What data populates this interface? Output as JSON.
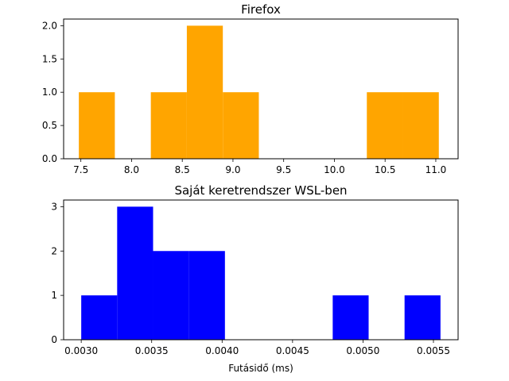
{
  "chart_data": [
    {
      "type": "bar",
      "title": "Firefox",
      "xlabel": "",
      "ylabel": "",
      "color": "#ffa500",
      "xlim": [
        7.33,
        11.22
      ],
      "ylim": [
        0,
        2.1
      ],
      "xticks": [
        "7.5",
        "8.0",
        "8.5",
        "9.0",
        "9.5",
        "10.0",
        "10.5",
        "11.0"
      ],
      "yticks": [
        "0.0",
        "0.5",
        "1.0",
        "1.5",
        "2.0"
      ],
      "bins": [
        {
          "x0": 7.48,
          "x1": 7.835,
          "count": 1
        },
        {
          "x0": 7.835,
          "x1": 8.19,
          "count": 0
        },
        {
          "x0": 8.19,
          "x1": 8.545,
          "count": 1
        },
        {
          "x0": 8.545,
          "x1": 8.9,
          "count": 2
        },
        {
          "x0": 8.9,
          "x1": 9.255,
          "count": 1
        },
        {
          "x0": 9.255,
          "x1": 9.61,
          "count": 0
        },
        {
          "x0": 9.61,
          "x1": 9.965,
          "count": 0
        },
        {
          "x0": 9.965,
          "x1": 10.32,
          "count": 0
        },
        {
          "x0": 10.32,
          "x1": 10.675,
          "count": 1
        },
        {
          "x0": 10.675,
          "x1": 11.03,
          "count": 1
        }
      ]
    },
    {
      "type": "bar",
      "title": "Saját keretrendszer WSL-ben",
      "xlabel": "Futásidő (ms)",
      "ylabel": "",
      "color": "#0000ff",
      "xlim": [
        0.002875,
        0.005675
      ],
      "ylim": [
        0,
        3.15
      ],
      "xticks": [
        "0.0030",
        "0.0035",
        "0.0040",
        "0.0045",
        "0.0050",
        "0.0055"
      ],
      "yticks": [
        "0",
        "1",
        "2",
        "3"
      ],
      "bins": [
        {
          "x0": 0.003,
          "x1": 0.003255,
          "count": 1
        },
        {
          "x0": 0.003255,
          "x1": 0.00351,
          "count": 3
        },
        {
          "x0": 0.00351,
          "x1": 0.003765,
          "count": 2
        },
        {
          "x0": 0.003765,
          "x1": 0.00402,
          "count": 2
        },
        {
          "x0": 0.00402,
          "x1": 0.004275,
          "count": 0
        },
        {
          "x0": 0.004275,
          "x1": 0.00453,
          "count": 0
        },
        {
          "x0": 0.00453,
          "x1": 0.004785,
          "count": 0
        },
        {
          "x0": 0.004785,
          "x1": 0.00504,
          "count": 1
        },
        {
          "x0": 0.00504,
          "x1": 0.005295,
          "count": 0
        },
        {
          "x0": 0.005295,
          "x1": 0.00555,
          "count": 1
        }
      ]
    }
  ]
}
